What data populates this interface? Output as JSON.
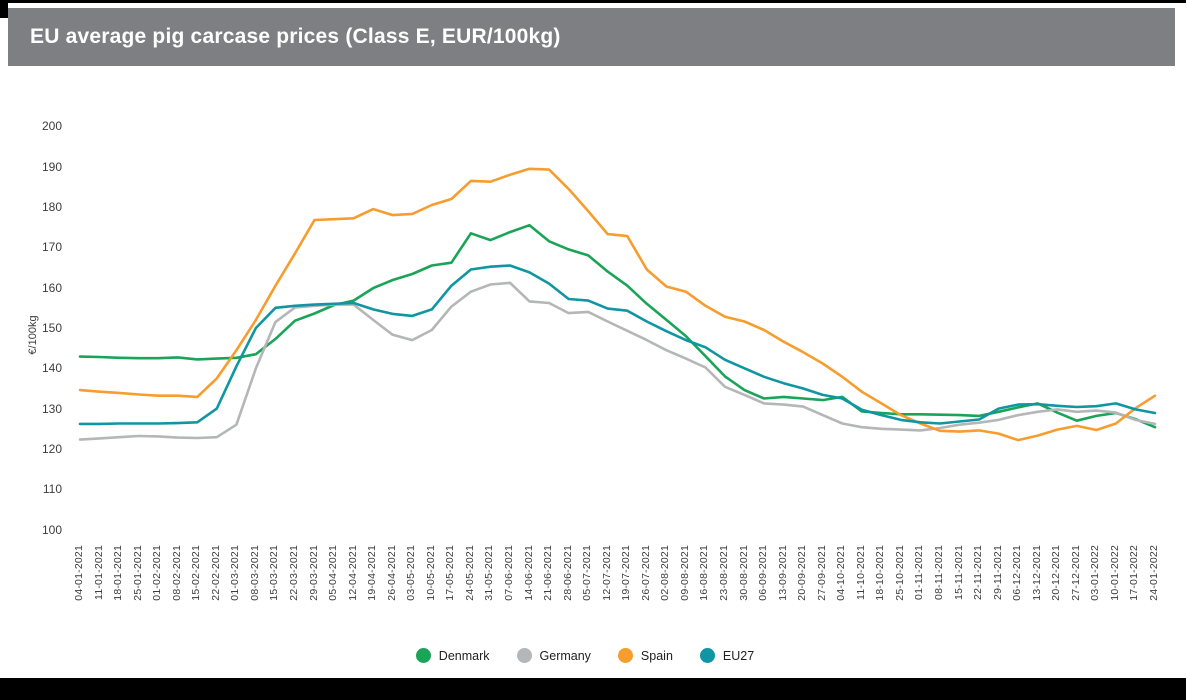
{
  "header": {
    "title": "EU average pig carcase prices (Class E, EUR/100kg)",
    "title_bar_color": "#7d7f82",
    "title_text_color": "#ffffff"
  },
  "chart_data": {
    "type": "line",
    "title": "EU average pig carcase prices (Class E, EUR/100kg)",
    "xlabel": "",
    "ylabel": "€/100kg",
    "ylim": [
      100,
      200
    ],
    "yticks": [
      200,
      190,
      180,
      170,
      160,
      150,
      140,
      130,
      120,
      110,
      100
    ],
    "grid": false,
    "legend_position": "bottom-center",
    "axis_text_color": "#3d3d3d",
    "x": [
      "04-01-2021",
      "11-01-2021",
      "18-01-2021",
      "25-01-2021",
      "01-02-2021",
      "08-02-2021",
      "15-02-2021",
      "22-02-2021",
      "01-03-2021",
      "08-03-2021",
      "15-03-2021",
      "22-03-2021",
      "29-03-2021",
      "05-04-2021",
      "12-04-2021",
      "19-04-2021",
      "26-04-2021",
      "03-05-2021",
      "10-05-2021",
      "17-05-2021",
      "24-05-2021",
      "31-05-2021",
      "07-06-2021",
      "14-06-2021",
      "21-06-2021",
      "28-06-2021",
      "05-07-2021",
      "12-07-2021",
      "19-07-2021",
      "26-07-2021",
      "02-08-2021",
      "09-08-2021",
      "16-08-2021",
      "23-08-2021",
      "30-08-2021",
      "06-09-2021",
      "13-09-2021",
      "20-09-2021",
      "27-09-2021",
      "04-10-2021",
      "11-10-2021",
      "18-10-2021",
      "25-10-2021",
      "01-11-2021",
      "08-11-2021",
      "15-11-2021",
      "22-11-2021",
      "29-11-2021",
      "06-12-2021",
      "13-12-2021",
      "20-12-2021",
      "27-12-2021",
      "03-01-2022",
      "10-01-2022",
      "17-01-2022",
      "24-01-2022"
    ],
    "series": [
      {
        "name": "Denmark",
        "color": "#1aa458",
        "values": [
          142.9,
          142.8,
          142.6,
          142.5,
          142.5,
          142.7,
          142.2,
          142.4,
          142.6,
          143.5,
          147.3,
          151.8,
          153.6,
          155.7,
          156.8,
          159.9,
          161.9,
          163.4,
          165.5,
          166.2,
          173.5,
          171.8,
          173.8,
          175.5,
          171.5,
          169.5,
          168.0,
          164.0,
          160.5,
          156.0,
          152.0,
          148.0,
          143.0,
          138.0,
          134.6,
          132.5,
          132.9,
          132.5,
          132.1,
          132.9,
          129.3,
          128.9,
          128.6,
          128.6,
          128.5,
          128.4,
          128.2,
          129.2,
          130.3,
          131.3,
          129.0,
          127.0,
          128.2,
          128.9,
          127.4,
          125.4
        ]
      },
      {
        "name": "Germany",
        "color": "#b5b6b7",
        "values": [
          122.3,
          122.6,
          122.9,
          123.2,
          123.1,
          122.8,
          122.7,
          122.9,
          126.0,
          140.0,
          151.5,
          155.1,
          155.5,
          155.8,
          155.8,
          152.0,
          148.3,
          147.0,
          149.5,
          155.3,
          159.0,
          160.8,
          161.2,
          156.6,
          156.2,
          153.7,
          154.0,
          151.6,
          149.3,
          147.0,
          144.5,
          142.4,
          140.2,
          135.4,
          133.4,
          131.3,
          131.0,
          130.5,
          128.4,
          126.3,
          125.4,
          125.0,
          124.8,
          124.6,
          125.2,
          126.0,
          126.5,
          127.2,
          128.4,
          129.2,
          129.8,
          129.2,
          129.5,
          129.0,
          127.2,
          126.2
        ]
      },
      {
        "name": "Spain",
        "color": "#f79d2e",
        "values": [
          134.6,
          134.2,
          133.9,
          133.5,
          133.2,
          133.2,
          132.9,
          137.5,
          144.5,
          152.0,
          160.5,
          168.5,
          176.8,
          177.0,
          177.2,
          179.5,
          178.0,
          178.3,
          180.5,
          182.0,
          186.5,
          186.3,
          188.0,
          189.5,
          189.3,
          184.5,
          179.0,
          173.3,
          172.8,
          164.5,
          160.3,
          159.0,
          155.5,
          152.8,
          151.6,
          149.5,
          146.6,
          144.0,
          141.2,
          137.9,
          134.2,
          131.3,
          128.4,
          126.3,
          124.5,
          124.3,
          124.6,
          123.8,
          122.2,
          123.3,
          124.8,
          125.7,
          124.7,
          126.3,
          130.1,
          133.2
        ]
      },
      {
        "name": "EU27",
        "color": "#0f96a2",
        "values": [
          126.2,
          126.2,
          126.3,
          126.3,
          126.3,
          126.4,
          126.6,
          130.0,
          140.5,
          150.0,
          155.0,
          155.5,
          155.8,
          156.0,
          156.2,
          154.6,
          153.5,
          153.0,
          154.6,
          160.5,
          164.5,
          165.2,
          165.5,
          163.8,
          161.0,
          157.2,
          156.8,
          154.8,
          154.3,
          151.6,
          149.2,
          147.0,
          145.2,
          142.1,
          140.0,
          137.9,
          136.3,
          135.0,
          133.4,
          132.5,
          129.7,
          128.4,
          127.2,
          126.6,
          126.3,
          126.8,
          127.3,
          130.0,
          131.0,
          131.1,
          130.7,
          130.4,
          130.6,
          131.3,
          129.8,
          128.9
        ]
      }
    ]
  }
}
